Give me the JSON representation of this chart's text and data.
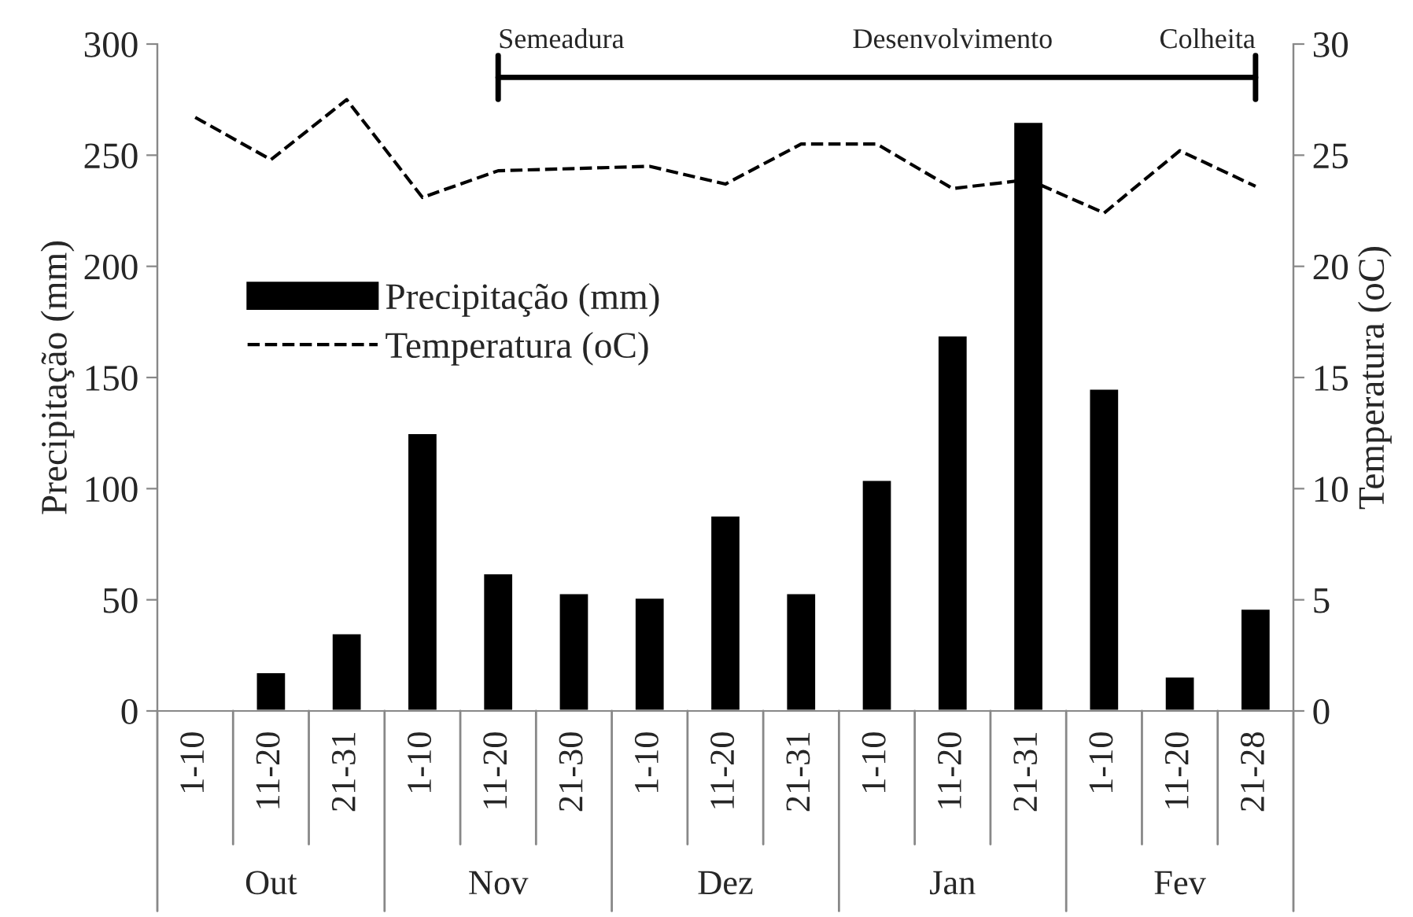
{
  "chart_data": {
    "type": "bar",
    "categories": [
      "1-10",
      "11-20",
      "21-31",
      "1-10",
      "11-20",
      "21-30",
      "1-10",
      "11-20",
      "21-31",
      "1-10",
      "11-20",
      "21-31",
      "1-10",
      "11-20",
      "21-28"
    ],
    "series": [
      {
        "name": "Precipitação (mm)",
        "color": "#000000",
        "values": [
          null,
          17.5,
          35,
          125,
          62,
          53,
          51,
          88,
          53,
          104,
          169,
          265,
          145,
          15.5,
          46
        ]
      },
      {
        "name": "Temperatura (oC)",
        "type": "line",
        "axis": "y2",
        "color": "#000000",
        "line_style": "dashed",
        "values": [
          26.7,
          24.8,
          27.5,
          23.1,
          24.3,
          24.4,
          24.5,
          23.7,
          25.5,
          25.5,
          23.5,
          23.9,
          22.4,
          25.2,
          23.6
        ]
      }
    ],
    "ylabel": "Precipitação (mm)",
    "y2label": "Temperatura (oC)",
    "ylim": [
      0,
      300
    ],
    "yticks": [
      0,
      50,
      100,
      150,
      200,
      250,
      300
    ],
    "y2lim": [
      0,
      30
    ],
    "y2ticks": [
      0,
      5,
      10,
      15,
      20,
      25,
      30
    ],
    "annotations": [
      "Semeadura",
      "Desenvolvimento",
      "Colheita",
      "Out",
      "Nov",
      "Dez",
      "Jan",
      "Fev"
    ],
    "legend": "left",
    "grid": false
  }
}
